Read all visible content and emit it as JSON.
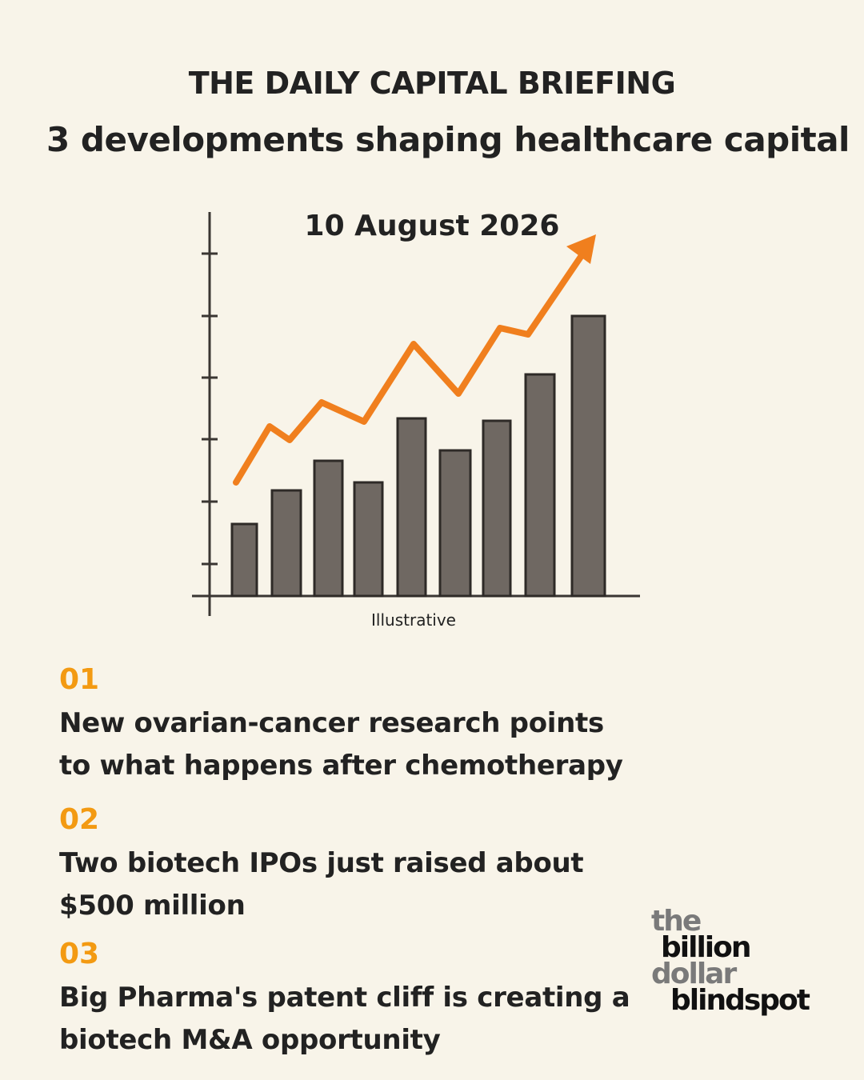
{
  "header": {
    "title": "THE DAILY CAPITAL BRIEFING",
    "subtitle": "3 developments shaping healthcare capital"
  },
  "illustration": {
    "date": "10 August 2026",
    "caption": "Illustrative"
  },
  "items": [
    {
      "number": "01",
      "text": "New ovarian-cancer research points to what happens after chemotherapy"
    },
    {
      "number": "02",
      "text": "Two biotech IPOs just raised about $500 million"
    },
    {
      "number": "03",
      "text": "Big Pharma's patent cliff is creating a biotech M&A opportunity"
    }
  ],
  "logo": {
    "words": [
      "the",
      "billion",
      "dollar",
      "blindspot"
    ]
  }
}
